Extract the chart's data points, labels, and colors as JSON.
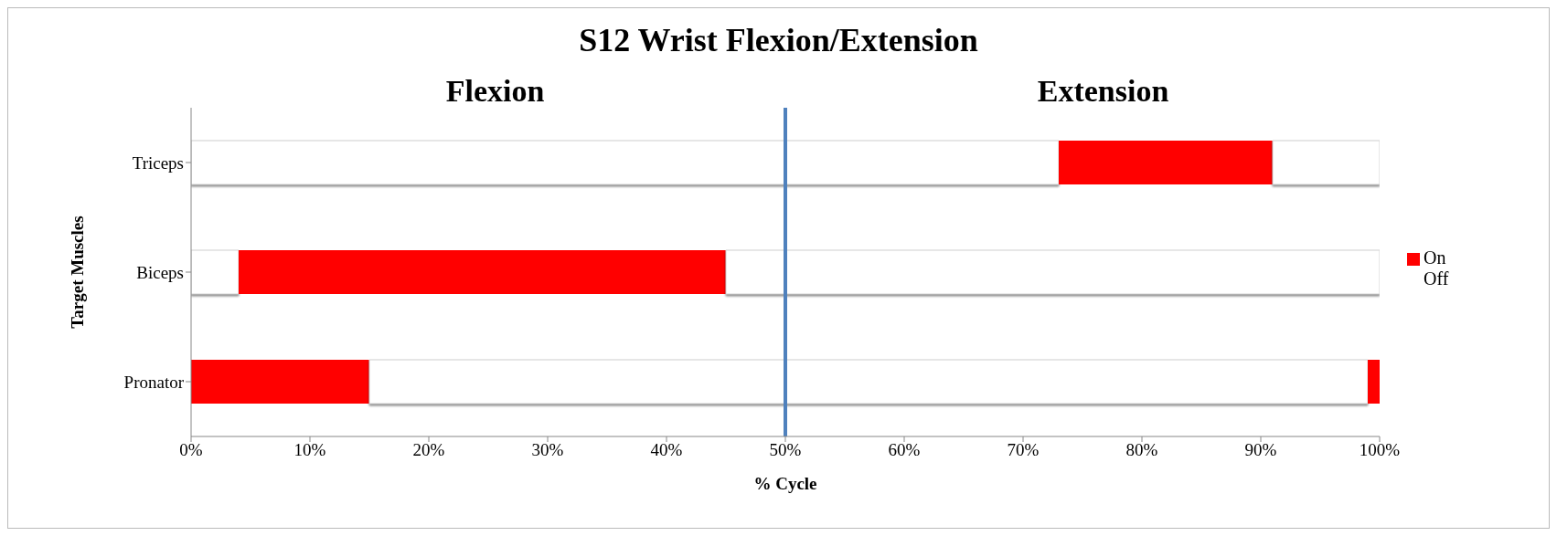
{
  "chart_data": {
    "type": "bar",
    "orientation": "horizontal",
    "stacked": true,
    "title": "S12 Wrist Flexion/Extension",
    "xlabel": "% Cycle",
    "ylabel": "Target Muscles",
    "categories": [
      "Triceps",
      "Biceps",
      "Pronator"
    ],
    "series": [
      {
        "name": "On",
        "color": "#ff0000",
        "values": [
          0,
          0,
          15
        ]
      },
      {
        "name": "Off",
        "color": "#ffffff",
        "values": [
          73,
          4,
          84
        ]
      },
      {
        "color": "#ff0000",
        "values": [
          18,
          41,
          1
        ]
      },
      {
        "color": "#ffffff",
        "values": [
          9,
          55,
          0
        ]
      }
    ],
    "xlim": [
      0,
      100
    ],
    "xticks": [
      {
        "value": 0,
        "label": "0%"
      },
      {
        "value": 10,
        "label": "10%"
      },
      {
        "value": 20,
        "label": "20%"
      },
      {
        "value": 30,
        "label": "30%"
      },
      {
        "value": 40,
        "label": "40%"
      },
      {
        "value": 50,
        "label": "50%"
      },
      {
        "value": 60,
        "label": "60%"
      },
      {
        "value": 70,
        "label": "70%"
      },
      {
        "value": 80,
        "label": "80%"
      },
      {
        "value": 90,
        "label": "90%"
      },
      {
        "value": 100,
        "label": "100%"
      }
    ],
    "ref_lines": [
      {
        "axis": "x",
        "value": 50,
        "color": "#4f81bd"
      }
    ],
    "annotations": [
      "Flexion",
      "Extension"
    ],
    "legend": "right"
  }
}
